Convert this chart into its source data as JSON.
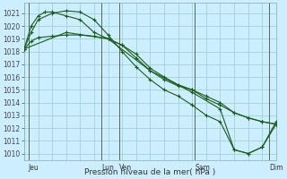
{
  "background_color": "#cceeff",
  "grid_color": "#99cccc",
  "line_color": "#1a5c1a",
  "xlabel": "Pression niveau de la mer( hPa )",
  "ylim": [
    1009.5,
    1021.8
  ],
  "yticks": [
    1010,
    1011,
    1012,
    1013,
    1014,
    1015,
    1016,
    1017,
    1018,
    1019,
    1020,
    1021
  ],
  "xlim": [
    0,
    18
  ],
  "xtick_labels": [
    "Jeu",
    "Lun",
    "Ven",
    "Sam",
    "Dim"
  ],
  "xtick_positions": [
    0.3,
    5.5,
    6.8,
    12.2,
    17.5
  ],
  "vline_positions": [
    0.3,
    5.5,
    6.8,
    12.2,
    17.5
  ],
  "series": [
    {
      "x": [
        0,
        0.5,
        1,
        2,
        3,
        4,
        5,
        6,
        7,
        8,
        9,
        10,
        11,
        12,
        13,
        14,
        15,
        16,
        17,
        18
      ],
      "y": [
        1018.2,
        1018.8,
        1019.1,
        1019.2,
        1019.3,
        1019.3,
        1019.2,
        1019.0,
        1018.5,
        1017.8,
        1016.7,
        1016.0,
        1015.4,
        1015.0,
        1014.5,
        1014.0,
        1013.2,
        1012.8,
        1012.5,
        1012.3
      ]
    },
    {
      "x": [
        0,
        0.5,
        1,
        2,
        3,
        4,
        5,
        6,
        7,
        8,
        9,
        10,
        11,
        12,
        13,
        14,
        15,
        16,
        17,
        18
      ],
      "y": [
        1018.2,
        1019.5,
        1020.5,
        1021.0,
        1021.2,
        1021.1,
        1020.5,
        1019.3,
        1018.0,
        1016.8,
        1015.8,
        1015.0,
        1014.5,
        1013.8,
        1013.0,
        1012.5,
        1010.3,
        1010.0,
        1010.5,
        1012.5
      ]
    },
    {
      "x": [
        0,
        0.5,
        1,
        1.5,
        2,
        3,
        4,
        5,
        6,
        7,
        8,
        9,
        10,
        11,
        12,
        13,
        14,
        15,
        16,
        17,
        18
      ],
      "y": [
        1018.2,
        1020.0,
        1020.8,
        1021.1,
        1021.1,
        1020.8,
        1020.5,
        1019.5,
        1019.0,
        1018.5,
        1017.5,
        1016.5,
        1015.8,
        1015.3,
        1015.0,
        1014.3,
        1013.8,
        1013.2,
        1012.8,
        1012.5,
        1012.3
      ]
    },
    {
      "x": [
        0,
        3,
        6,
        9,
        12,
        14,
        15,
        16,
        17,
        18
      ],
      "y": [
        1018.2,
        1019.5,
        1019.0,
        1016.5,
        1014.8,
        1013.5,
        1010.3,
        1010.0,
        1010.5,
        1012.3
      ]
    }
  ]
}
